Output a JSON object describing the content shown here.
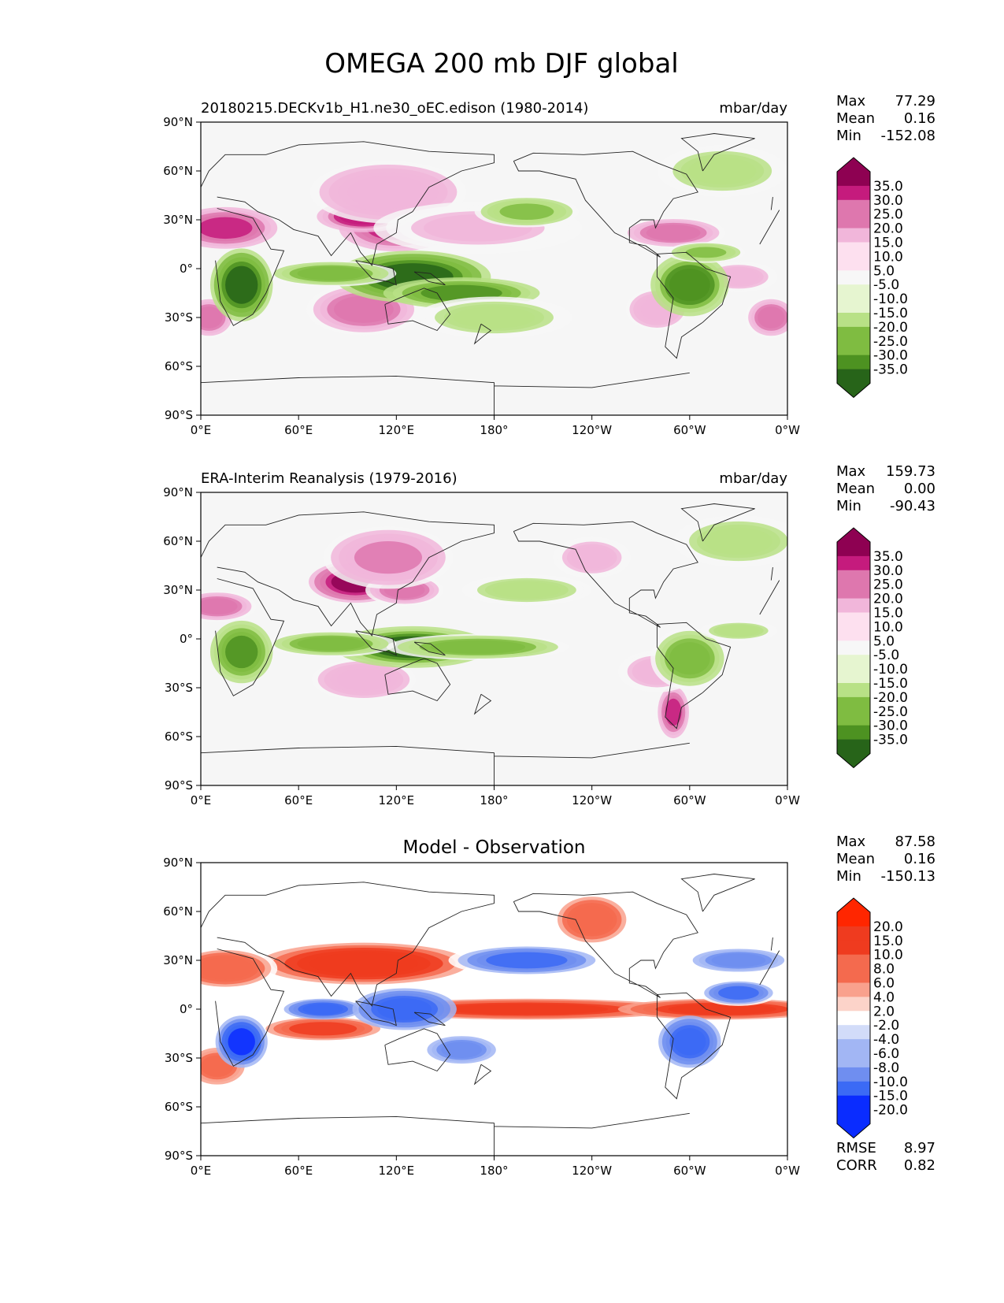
{
  "title": "OMEGA 200 mb DJF global",
  "colors": {
    "background": "#ffffff",
    "map_bg": "#f6f6f6",
    "coast": "#222222",
    "prgn": [
      "#276419",
      "#4d9221",
      "#7fbc41",
      "#b8e186",
      "#e6f5d0",
      "#f7f7f7",
      "#fde0ef",
      "#f1b6da",
      "#de77ae",
      "#c51b7d",
      "#8e0152"
    ],
    "bwr": [
      "#0a2cff",
      "#3b6af5",
      "#6f8ef0",
      "#a2b6f4",
      "#d2dcf9",
      "#ffffff",
      "#fcd3c9",
      "#f9a18d",
      "#f46a4e",
      "#ef3b1f",
      "#ff2600"
    ]
  },
  "chart_data": [
    {
      "type": "heatmap",
      "id": "test",
      "title": "20180215.DECKv1b_H1.ne30_oEC.edison (1980-2014)",
      "units": "mbar/day",
      "stats": {
        "max_label": "Max",
        "max": "77.29",
        "mean_label": "Mean",
        "mean": "0.16",
        "min_label": "Min",
        "min": "-152.08"
      },
      "xticks": [
        "0°E",
        "60°E",
        "120°E",
        "180°",
        "120°W",
        "60°W",
        "0°W"
      ],
      "yticks": [
        "90°N",
        "60°N",
        "30°N",
        "0°",
        "30°S",
        "60°S",
        "90°S"
      ],
      "xlim": [
        0,
        360
      ],
      "ylim": [
        -90,
        90
      ],
      "colorbar": [
        "35.0",
        "30.0",
        "25.0",
        "20.0",
        "15.0",
        "10.0",
        "5.0",
        "-5.0",
        "-10.0",
        "-15.0",
        "-20.0",
        "-25.0",
        "-30.0",
        "-35.0"
      ],
      "colormap": "prgn",
      "features": [
        {
          "lon": 120,
          "lat": 25,
          "rx": 22,
          "ry": 9,
          "v": 30
        },
        {
          "lon": 100,
          "lat": 32,
          "rx": 18,
          "ry": 6,
          "v": 35
        },
        {
          "lon": 15,
          "lat": 25,
          "rx": 20,
          "ry": 8,
          "v": 28
        },
        {
          "lon": 115,
          "lat": 47,
          "rx": 30,
          "ry": 12,
          "v": 15
        },
        {
          "lon": 100,
          "lat": -25,
          "rx": 22,
          "ry": 10,
          "v": 25
        },
        {
          "lon": 5,
          "lat": -30,
          "rx": 10,
          "ry": 8,
          "v": 25
        },
        {
          "lon": 350,
          "lat": -30,
          "rx": 10,
          "ry": 8,
          "v": 20
        },
        {
          "lon": 290,
          "lat": 22,
          "rx": 20,
          "ry": 6,
          "v": 20
        },
        {
          "lon": 280,
          "lat": -25,
          "rx": 12,
          "ry": 8,
          "v": 15
        },
        {
          "lon": 330,
          "lat": -5,
          "rx": 15,
          "ry": 6,
          "v": 12
        },
        {
          "lon": 170,
          "lat": 25,
          "rx": 40,
          "ry": 10,
          "v": 8
        },
        {
          "lon": 130,
          "lat": -5,
          "rx": 30,
          "ry": 10,
          "v": -38
        },
        {
          "lon": 160,
          "lat": -15,
          "rx": 30,
          "ry": 6,
          "v": -25
        },
        {
          "lon": 80,
          "lat": -3,
          "rx": 25,
          "ry": 5,
          "v": -20
        },
        {
          "lon": 25,
          "lat": -10,
          "rx": 12,
          "ry": 14,
          "v": -38
        },
        {
          "lon": 300,
          "lat": -10,
          "rx": 15,
          "ry": 12,
          "v": -32
        },
        {
          "lon": 200,
          "lat": 35,
          "rx": 20,
          "ry": 6,
          "v": -18
        },
        {
          "lon": 310,
          "lat": 10,
          "rx": 15,
          "ry": 4,
          "v": -18
        },
        {
          "lon": 320,
          "lat": 60,
          "rx": 25,
          "ry": 10,
          "v": -10
        },
        {
          "lon": 180,
          "lat": -30,
          "rx": 30,
          "ry": 8,
          "v": -10
        }
      ]
    },
    {
      "type": "heatmap",
      "id": "reference",
      "title": "ERA-Interim Reanalysis (1979-2016)",
      "units": "mbar/day",
      "stats": {
        "max_label": "Max",
        "max": "159.73",
        "mean_label": "Mean",
        "mean": "0.00",
        "min_label": "Min",
        "min": "-90.43"
      },
      "xticks": [
        "0°E",
        "60°E",
        "120°E",
        "180°",
        "120°W",
        "60°W",
        "0°W"
      ],
      "yticks": [
        "90°N",
        "60°N",
        "30°N",
        "0°",
        "30°S",
        "60°S",
        "90°S"
      ],
      "xlim": [
        0,
        360
      ],
      "ylim": [
        -90,
        90
      ],
      "colorbar": [
        "35.0",
        "30.0",
        "25.0",
        "20.0",
        "15.0",
        "10.0",
        "5.0",
        "-5.0",
        "-10.0",
        "-15.0",
        "-20.0",
        "-25.0",
        "-30.0",
        "-35.0"
      ],
      "colormap": "prgn",
      "features": [
        {
          "lon": 95,
          "lat": 35,
          "rx": 18,
          "ry": 8,
          "v": 38
        },
        {
          "lon": 125,
          "lat": 30,
          "rx": 15,
          "ry": 6,
          "v": 25
        },
        {
          "lon": 115,
          "lat": 50,
          "rx": 25,
          "ry": 12,
          "v": 18
        },
        {
          "lon": 10,
          "lat": 20,
          "rx": 15,
          "ry": 6,
          "v": 20
        },
        {
          "lon": 290,
          "lat": -45,
          "rx": 6,
          "ry": 10,
          "v": 30
        },
        {
          "lon": 100,
          "lat": -25,
          "rx": 20,
          "ry": 8,
          "v": 15
        },
        {
          "lon": 280,
          "lat": -20,
          "rx": 15,
          "ry": 8,
          "v": 12
        },
        {
          "lon": 240,
          "lat": 50,
          "rx": 15,
          "ry": 8,
          "v": 10
        },
        {
          "lon": 130,
          "lat": -5,
          "rx": 30,
          "ry": 8,
          "v": -35
        },
        {
          "lon": 170,
          "lat": -5,
          "rx": 35,
          "ry": 5,
          "v": -22
        },
        {
          "lon": 80,
          "lat": -3,
          "rx": 25,
          "ry": 5,
          "v": -22
        },
        {
          "lon": 25,
          "lat": -8,
          "rx": 12,
          "ry": 12,
          "v": -30
        },
        {
          "lon": 300,
          "lat": -12,
          "rx": 15,
          "ry": 12,
          "v": -22
        },
        {
          "lon": 200,
          "lat": 30,
          "rx": 25,
          "ry": 6,
          "v": -12
        },
        {
          "lon": 330,
          "lat": 60,
          "rx": 25,
          "ry": 10,
          "v": -10
        },
        {
          "lon": 330,
          "lat": 5,
          "rx": 15,
          "ry": 4,
          "v": -12
        }
      ]
    },
    {
      "type": "heatmap",
      "id": "diff",
      "title": "Model - Observation",
      "units": "",
      "stats": {
        "max_label": "Max",
        "max": "87.58",
        "mean_label": "Mean",
        "mean": "0.16",
        "min_label": "Min",
        "min": "-150.13"
      },
      "metrics": {
        "rmse_label": "RMSE",
        "rmse": "8.97",
        "corr_label": "CORR",
        "corr": "0.82"
      },
      "xticks": [
        "0°E",
        "60°E",
        "120°E",
        "180°",
        "120°W",
        "60°W",
        "0°W"
      ],
      "yticks": [
        "90°N",
        "60°N",
        "30°N",
        "0°",
        "30°S",
        "60°S",
        "90°S"
      ],
      "xlim": [
        0,
        360
      ],
      "ylim": [
        -90,
        90
      ],
      "colorbar": [
        "20.0",
        "15.0",
        "10.0",
        "8.0",
        "6.0",
        "4.0",
        "2.0",
        "-2.0",
        "-4.0",
        "-6.0",
        "-8.0",
        "-10.0",
        "-15.0",
        "-20.0"
      ],
      "colormap": "bwr",
      "features": [
        {
          "lon": 200,
          "lat": 0,
          "rx": 60,
          "ry": 4,
          "v": 12
        },
        {
          "lon": 320,
          "lat": 0,
          "rx": 40,
          "ry": 4,
          "v": 12
        },
        {
          "lon": 100,
          "lat": 28,
          "rx": 40,
          "ry": 8,
          "v": 15
        },
        {
          "lon": 15,
          "lat": 25,
          "rx": 20,
          "ry": 8,
          "v": 8
        },
        {
          "lon": 75,
          "lat": -12,
          "rx": 25,
          "ry": 5,
          "v": 10
        },
        {
          "lon": 240,
          "lat": 55,
          "rx": 15,
          "ry": 10,
          "v": 8
        },
        {
          "lon": 10,
          "lat": -35,
          "rx": 12,
          "ry": 8,
          "v": 6
        },
        {
          "lon": 200,
          "lat": 30,
          "rx": 30,
          "ry": 6,
          "v": -8
        },
        {
          "lon": 75,
          "lat": 0,
          "rx": 15,
          "ry": 4,
          "v": -10
        },
        {
          "lon": 25,
          "lat": -20,
          "rx": 10,
          "ry": 10,
          "v": -15
        },
        {
          "lon": 125,
          "lat": 0,
          "rx": 20,
          "ry": 8,
          "v": -12
        },
        {
          "lon": 300,
          "lat": -20,
          "rx": 12,
          "ry": 10,
          "v": -12
        },
        {
          "lon": 330,
          "lat": 10,
          "rx": 15,
          "ry": 5,
          "v": -8
        },
        {
          "lon": 160,
          "lat": -25,
          "rx": 15,
          "ry": 6,
          "v": -6
        },
        {
          "lon": 330,
          "lat": 30,
          "rx": 20,
          "ry": 5,
          "v": -6
        }
      ]
    }
  ]
}
